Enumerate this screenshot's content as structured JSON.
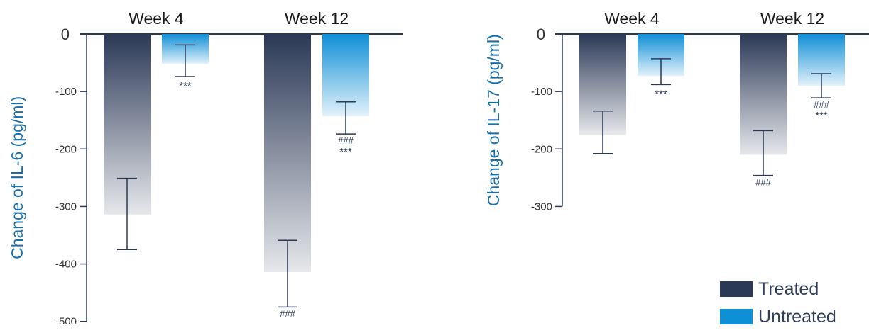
{
  "colors": {
    "treated": "#2b3956",
    "untreated": "#0f8fd6",
    "axis": "#2b3956",
    "ylabel": "#1b6fa8",
    "tick": "#333333",
    "sig": "#2b3956"
  },
  "legend": {
    "treated_label": "Treated",
    "untreated_label": "Untreated"
  },
  "chart_data": [
    {
      "type": "bar",
      "categories": [
        "Week 4",
        "Week 12"
      ],
      "series": [
        {
          "name": "Treated",
          "values": [
            -314,
            -414
          ],
          "error": [
            [
              -375,
              -251
            ],
            [
              -475,
              -359
            ]
          ],
          "annotations": [
            "",
            "###"
          ]
        },
        {
          "name": "Untreated",
          "values": [
            -52,
            -143
          ],
          "error": [
            [
              -74,
              -19
            ],
            [
              -174,
              -118
            ]
          ],
          "annotations": [
            "***",
            "###\n***"
          ]
        }
      ],
      "title": "",
      "xlabel": "",
      "ylabel": "Change of IL-6 (pg/ml)",
      "ylim": [
        -500,
        0
      ],
      "yticks": [
        0,
        -100,
        -200,
        -300,
        -400,
        -500
      ],
      "ytick_labels": [
        "0",
        "-100",
        "-200",
        "-300",
        "-400",
        "-500"
      ],
      "grid": false
    },
    {
      "type": "bar",
      "categories": [
        "Week 4",
        "Week 12"
      ],
      "series": [
        {
          "name": "Treated",
          "values": [
            -175,
            -210
          ],
          "error": [
            [
              -208,
              -134
            ],
            [
              -246,
              -168
            ]
          ],
          "annotations": [
            "",
            "###"
          ]
        },
        {
          "name": "Untreated",
          "values": [
            -73,
            -90
          ],
          "error": [
            [
              -88,
              -43
            ],
            [
              -111,
              -69
            ]
          ],
          "annotations": [
            "***",
            "###\n***"
          ]
        }
      ],
      "title": "",
      "xlabel": "",
      "ylabel": "Change of IL-17 (pg/ml)",
      "ylim": [
        -300,
        0
      ],
      "yticks": [
        0,
        -100,
        -200,
        -300
      ],
      "ytick_labels": [
        "0",
        "-100",
        "-200",
        "-300"
      ],
      "grid": false
    }
  ]
}
